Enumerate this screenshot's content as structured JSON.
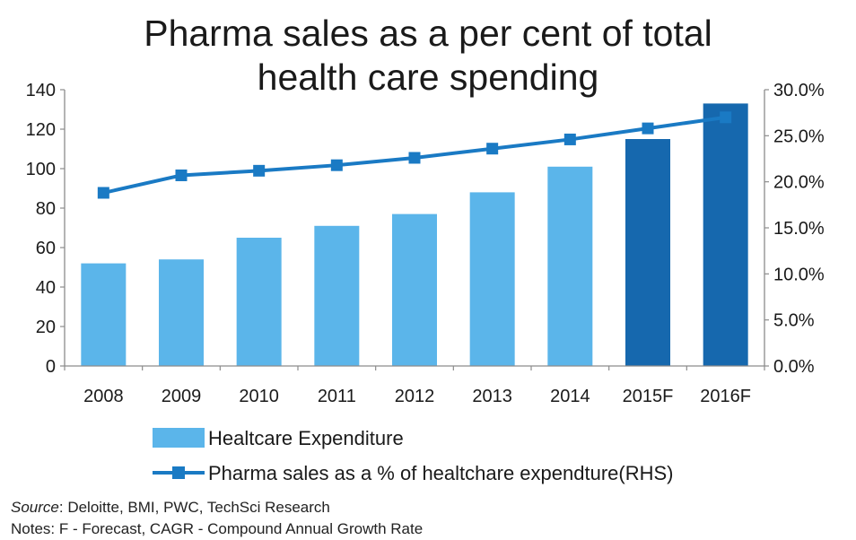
{
  "chart_data": {
    "type": "bar",
    "title": "Pharma sales as a per cent of total health care spending",
    "title_lines": [
      "Pharma sales as a per cent of total",
      "health care spending"
    ],
    "categories": [
      "2008",
      "2009",
      "2010",
      "2011",
      "2012",
      "2013",
      "2014",
      "2015F",
      "2016F"
    ],
    "series": [
      {
        "name": "Healtcare Expenditure",
        "type": "bar",
        "axis": "left",
        "values": [
          52,
          54,
          65,
          71,
          77,
          88,
          101,
          115,
          133
        ],
        "colors": [
          "#5bb5ea",
          "#5bb5ea",
          "#5bb5ea",
          "#5bb5ea",
          "#5bb5ea",
          "#5bb5ea",
          "#5bb5ea",
          "#1668ae",
          "#1668ae"
        ]
      },
      {
        "name": "Pharma sales as a % of healtchare expendture(RHS)",
        "type": "line",
        "axis": "right",
        "values": [
          18.8,
          20.7,
          21.2,
          21.8,
          22.6,
          23.6,
          24.6,
          25.8,
          27.0
        ],
        "color": "#1a7ac4"
      }
    ],
    "y_left": {
      "ylim": [
        0,
        140
      ],
      "ticks": [
        "0",
        "20",
        "40",
        "60",
        "80",
        "100",
        "120",
        "140"
      ]
    },
    "y_right": {
      "ylim": [
        0,
        30
      ],
      "ticks": [
        "0.0%",
        "5.0%",
        "10.0%",
        "15.0%",
        "20.0%",
        "25.0%",
        "30.0%"
      ]
    },
    "grid": false,
    "legend": "bottom"
  },
  "source": {
    "label": "Source",
    "text": ": Deloitte, BMI, PWC, TechSci Research"
  },
  "notes": "Notes: F - Forecast, CAGR - Compound Annual Growth Rate"
}
